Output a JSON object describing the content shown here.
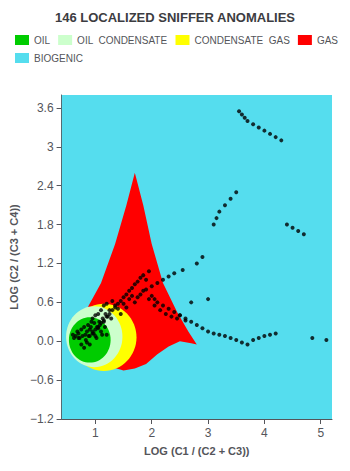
{
  "chart_data": {
    "type": "scatter",
    "title": "146 LOCALIZED SNIFFER ANOMALIES",
    "xlabel": "LOG (C1 / (C2 + C3))",
    "ylabel": "LOG (C2 / (C3 + C4))",
    "xlim": [
      0.4,
      5.2
    ],
    "ylim": [
      -1.2,
      3.8
    ],
    "xticks": [
      1,
      2,
      3,
      4,
      5
    ],
    "yticks": [
      {
        "value": -1.2,
        "label": "−1.2"
      },
      {
        "value": -0.6,
        "label": "−0.6"
      },
      {
        "value": 0.0,
        "label": "0.0"
      },
      0.6,
      1.2,
      1.8,
      2.4,
      3.0,
      3.6
    ],
    "grid": false,
    "legend": "upper left",
    "color": "#000000",
    "x": [
      0.6,
      0.62,
      0.65,
      0.68,
      0.7,
      0.72,
      0.75,
      0.77,
      0.8,
      0.82,
      0.83,
      0.85,
      0.87,
      0.88,
      0.9,
      0.9,
      0.92,
      0.93,
      0.95,
      0.95,
      0.97,
      0.98,
      1.0,
      1.0,
      1.02,
      1.03,
      1.05,
      1.05,
      1.07,
      1.08,
      1.1,
      1.1,
      1.12,
      1.13,
      1.15,
      1.15,
      1.17,
      1.18,
      1.2,
      1.2,
      1.22,
      1.25,
      1.28,
      1.3,
      1.35,
      1.4,
      1.45,
      1.5,
      1.55,
      1.6,
      1.65,
      1.7,
      1.75,
      1.8,
      1.85,
      1.9,
      1.95,
      2.0,
      2.05,
      2.1,
      2.15,
      2.2,
      2.25,
      2.3,
      2.35,
      2.4,
      2.45,
      2.5,
      2.55,
      2.6,
      2.7,
      2.8,
      2.9,
      3.0,
      3.1,
      3.15,
      3.2,
      3.3,
      3.4,
      3.5,
      3.55,
      3.6,
      3.65,
      3.7,
      3.8,
      3.9,
      4.0,
      4.1,
      4.2,
      4.3,
      4.4,
      4.5,
      4.6,
      4.7,
      4.85,
      5.1,
      0.7,
      0.75,
      0.8,
      0.85,
      0.9,
      0.95,
      1.0,
      1.05,
      1.1,
      1.15,
      1.2,
      1.25,
      1.3,
      1.35,
      1.4,
      1.45,
      1.5,
      1.55,
      1.6,
      1.65,
      1.7,
      1.75,
      1.8,
      1.85,
      1.9,
      1.95,
      2.0,
      2.05,
      2.1,
      2.2,
      2.3,
      2.4,
      2.5,
      2.6,
      2.7,
      2.8,
      2.9,
      3.0,
      3.1,
      3.2,
      3.3,
      3.4,
      3.5,
      3.6,
      3.7,
      3.8,
      3.9,
      4.0,
      4.1,
      4.2
    ],
    "y": [
      0.1,
      0.05,
      0.08,
      0.15,
      0.12,
      0.05,
      0.18,
      0.08,
      0.22,
      0.1,
      0.02,
      0.15,
      0.25,
      0.08,
      0.18,
      -0.05,
      0.22,
      0.3,
      0.15,
      0.35,
      0.12,
      0.28,
      0.08,
      0.4,
      0.05,
      0.22,
      0.2,
      0.42,
      0.3,
      0.25,
      0.15,
      0.48,
      0.1,
      0.35,
      0.3,
      0.55,
      0.22,
      0.42,
      0.1,
      0.58,
      0.38,
      0.48,
      0.35,
      0.62,
      0.55,
      0.5,
      0.42,
      0.58,
      0.52,
      0.65,
      0.7,
      0.6,
      0.68,
      0.72,
      0.78,
      0.8,
      0.65,
      0.85,
      0.55,
      0.9,
      0.48,
      0.95,
      0.42,
      1.0,
      0.38,
      1.05,
      0.35,
      0.4,
      1.1,
      0.32,
      0.6,
      1.2,
      1.3,
      0.65,
      1.8,
      1.9,
      2.0,
      2.1,
      2.2,
      2.3,
      3.55,
      3.5,
      3.45,
      3.4,
      3.35,
      3.3,
      3.25,
      3.2,
      3.15,
      3.1,
      1.8,
      1.75,
      1.7,
      1.65,
      0.05,
      0.02,
      0.05,
      -0.05,
      -0.1,
      -0.02,
      0.08,
      0.12,
      0.18,
      0.22,
      0.28,
      0.32,
      0.38,
      0.42,
      0.48,
      0.52,
      0.58,
      0.62,
      0.68,
      0.72,
      0.78,
      0.82,
      0.88,
      0.92,
      0.98,
      1.02,
      0.95,
      1.08,
      0.7,
      0.65,
      0.6,
      0.55,
      0.5,
      0.45,
      0.4,
      0.35,
      0.3,
      0.25,
      0.2,
      0.15,
      0.12,
      0.1,
      0.08,
      0.05,
      0.02,
      -0.02,
      -0.05,
      0.02,
      0.05,
      0.08,
      0.1,
      0.12
    ],
    "zones": [
      {
        "name": "OIL",
        "color": "#00cc00",
        "cx": 0.9,
        "cy": 0.02,
        "rx": 0.37,
        "ry": 0.35
      },
      {
        "name": "OIL  CONDENSATE",
        "color": "#ccffcc",
        "cx": 0.98,
        "cy": 0.07,
        "rx": 0.5,
        "ry": 0.47
      },
      {
        "name": "CONDENSATE  GAS",
        "color": "#ffff00",
        "cx": 1.15,
        "cy": 0.06,
        "rx": 0.58,
        "ry": 0.52
      },
      {
        "name": "GAS",
        "color": "#ff0000",
        "x": [
          1.7,
          1.55,
          1.35,
          1.1,
          0.85,
          0.65,
          0.55,
          0.7,
          0.9,
          1.1,
          1.3,
          1.5,
          1.7,
          1.9,
          2.1,
          2.3,
          2.5,
          2.7,
          2.8,
          2.65,
          2.45,
          2.2,
          2.0,
          1.85,
          1.7
        ],
        "y": [
          2.6,
          2.1,
          1.5,
          0.9,
          0.5,
          0.3,
          0.2,
          0.05,
          -0.15,
          -0.3,
          -0.4,
          -0.45,
          -0.42,
          -0.35,
          -0.2,
          -0.08,
          0.0,
          -0.03,
          -0.05,
          0.15,
          0.45,
          0.9,
          1.5,
          2.1,
          2.6
        ]
      },
      {
        "name": "BIOGENIC",
        "color": "#55ddee",
        "x": [
          0.4,
          5.2,
          5.2,
          0.4
        ],
        "y": [
          -1.2,
          -1.2,
          3.8,
          3.8
        ]
      }
    ]
  }
}
